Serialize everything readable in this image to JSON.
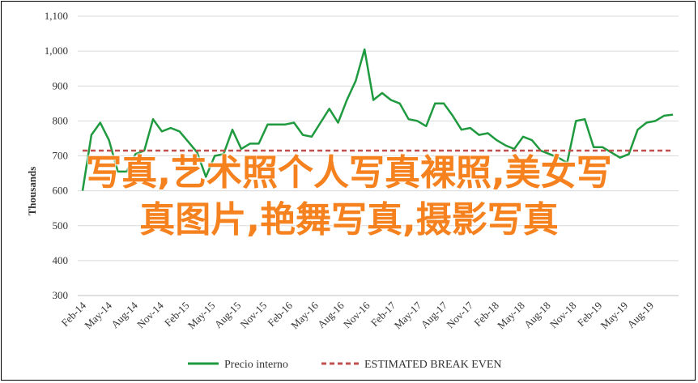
{
  "chart_data": {
    "type": "line",
    "ylabel": "Thousands",
    "ylim": [
      300,
      1100
    ],
    "yticks": [
      300,
      400,
      500,
      600,
      700,
      800,
      900,
      1000,
      1100
    ],
    "ytick_labels": [
      "300",
      "400",
      "500",
      "600",
      "700",
      "800",
      "900",
      "1,000",
      "1,100"
    ],
    "grid": true,
    "legend_position": "bottom",
    "x_tick_labels": [
      "Feb-14",
      "May-14",
      "Aug-14",
      "Nov-14",
      "Feb-15",
      "May-15",
      "Aug-15",
      "Nov-15",
      "Feb-16",
      "May-16",
      "Aug-16",
      "Nov-16",
      "Feb-17",
      "May-17",
      "Aug-17",
      "Nov-17",
      "Feb-18",
      "May-18",
      "Aug-18",
      "Nov-18",
      "Feb-19",
      "May-19",
      "Aug-19"
    ],
    "series": [
      {
        "name": "Precio interno",
        "color": "#1f9a3f",
        "style": "solid",
        "values": [
          600,
          760,
          795,
          745,
          655,
          655,
          705,
          715,
          805,
          770,
          780,
          770,
          740,
          710,
          640,
          700,
          705,
          775,
          720,
          735,
          735,
          790,
          790,
          790,
          795,
          760,
          755,
          795,
          835,
          795,
          860,
          915,
          1005,
          860,
          880,
          860,
          850,
          805,
          800,
          785,
          850,
          850,
          815,
          775,
          780,
          760,
          765,
          745,
          730,
          720,
          755,
          745,
          715,
          705,
          695,
          680,
          800,
          805,
          725,
          725,
          710,
          695,
          705,
          775,
          795,
          800,
          815,
          818
        ]
      },
      {
        "name": "ESTIMATED BREAK EVEN",
        "color": "#c0504d",
        "style": "dashed",
        "values": [
          715,
          715
        ]
      }
    ]
  },
  "overlay": {
    "line1": "写真,艺术照个人写真裸照,美女写",
    "line2": "真图片,艳舞写真,摄影写真"
  }
}
